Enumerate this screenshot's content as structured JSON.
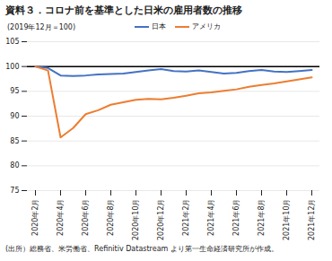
{
  "chart_data": {
    "type": "line",
    "title": "資料３．コロナ前を基準とした日米の雇用者数の推移",
    "subtitle": "(2019年12月＝100)",
    "caption": "(出所）総務省、米労働省、Refinitiv Datastream より第一生命経済研究所が作成。",
    "x": [
      "2020年2月",
      null,
      "2020年4月",
      null,
      "2020年6月",
      null,
      "2020年8月",
      null,
      "2020年10月",
      null,
      "2020年12月",
      null,
      "2021年2月",
      null,
      "2021年4月",
      null,
      "2021年6月",
      null,
      "2021年8月",
      null,
      "2021年10月",
      null,
      "2021年12月"
    ],
    "series": [
      {
        "name": "日本",
        "color": "#4472c4",
        "values": [
          100,
          99.7,
          98.2,
          98.1,
          98.2,
          98.4,
          98.5,
          98.6,
          98.9,
          99.2,
          99.5,
          99.1,
          99.0,
          99.2,
          98.9,
          98.6,
          98.7,
          99.1,
          99.3,
          99.0,
          98.9,
          99.1,
          99.3
        ]
      },
      {
        "name": "アメリカ",
        "color": "#ed7d31",
        "values": [
          100,
          99.2,
          85.7,
          87.6,
          90.4,
          91.2,
          92.3,
          92.8,
          93.3,
          93.5,
          93.4,
          93.7,
          94.1,
          94.6,
          94.8,
          95.1,
          95.4,
          95.9,
          96.3,
          96.6,
          97.0,
          97.4,
          97.8
        ]
      }
    ],
    "reference_line": 100,
    "ylim": [
      75,
      105
    ],
    "yticks": [
      75,
      80,
      85,
      90,
      95,
      100,
      105
    ],
    "grid": true,
    "legend": "top"
  }
}
